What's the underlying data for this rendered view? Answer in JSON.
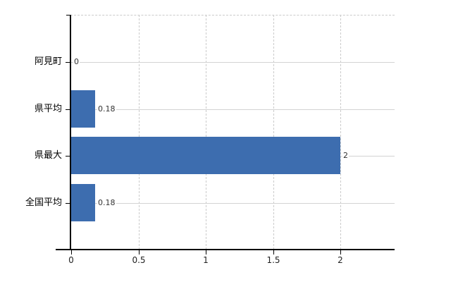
{
  "chart_data": {
    "type": "bar",
    "orientation": "horizontal",
    "title": "",
    "xlabel": "",
    "ylabel": "",
    "categories": [
      "阿見町",
      "県平均",
      "県最大",
      "全国平均"
    ],
    "values": [
      0,
      0.18,
      2,
      0.18
    ],
    "value_labels": [
      "0",
      "0.18",
      "2",
      "0.18"
    ],
    "x_ticks": [
      0,
      0.5,
      1,
      1.5,
      2
    ],
    "x_tick_labels": [
      "0",
      "0.5",
      "1",
      "1.5",
      "2"
    ],
    "xlim": [
      0,
      2.4
    ],
    "legend": "none",
    "grid": {
      "vertical_lines": "dashed",
      "horizontal_lines": "solid",
      "top_border": "dashed"
    },
    "colors": {
      "bar_fill": "#3D6DAF",
      "axis": "#000000",
      "gridline_horizontal": "#d3d3d3",
      "gridline_vertical_dash": "#cbcbcb",
      "value_label_text": "#333333",
      "category_label_text": "#000000",
      "tick_label_text": "#222222",
      "background": "#ffffff"
    }
  }
}
